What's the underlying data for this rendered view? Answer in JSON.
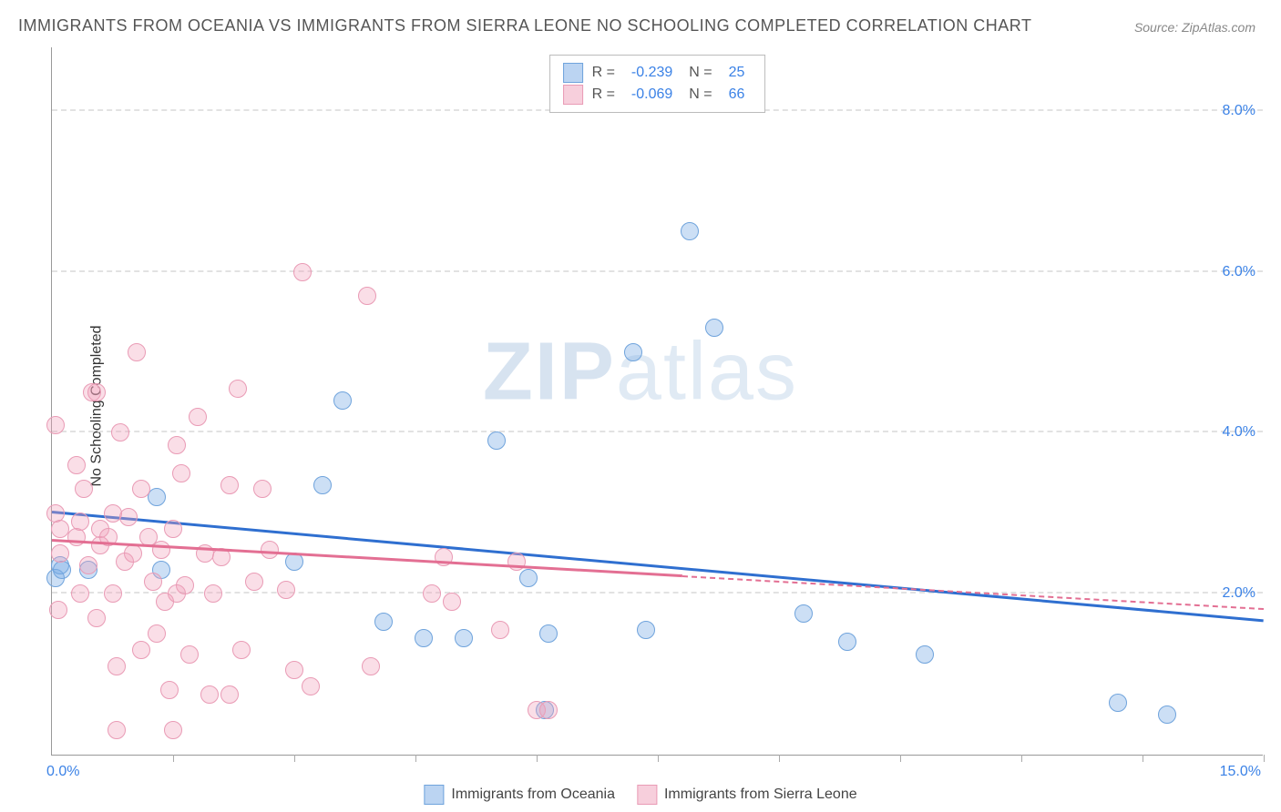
{
  "title": "IMMIGRANTS FROM OCEANIA VS IMMIGRANTS FROM SIERRA LEONE NO SCHOOLING COMPLETED CORRELATION CHART",
  "source": "Source: ZipAtlas.com",
  "ylabel": "No Schooling Completed",
  "watermark_zip": "ZIP",
  "watermark_atlas": "atlas",
  "chart": {
    "type": "scatter",
    "xlim": [
      0,
      15
    ],
    "ylim": [
      0,
      8.8
    ],
    "x_unit": "%",
    "y_unit": "%",
    "y_gridlines": [
      2,
      4,
      6,
      8
    ],
    "y_tick_labels": [
      "2.0%",
      "4.0%",
      "6.0%",
      "8.0%"
    ],
    "x_minor_ticks": [
      1.5,
      3.0,
      4.5,
      6.0,
      7.5,
      9.0,
      10.5,
      12.0,
      13.5,
      15.0
    ],
    "x_min_label": "0.0%",
    "x_max_label": "15.0%",
    "background_color": "#ffffff",
    "grid_color": "#e2e2e2",
    "axis_color": "#999999",
    "tick_label_color": "#3b82e6",
    "series": [
      {
        "name": "Immigrants from Oceania",
        "color": "#6fa3dc",
        "fill": "rgba(120,170,230,0.38)",
        "marker_size": 20,
        "R": "-0.239",
        "N": "25",
        "trend": {
          "x1": 0,
          "y1": 3.0,
          "x2": 15,
          "y2": 1.65,
          "color": "#2f6fd0",
          "width": 3,
          "dashed_after_x": null
        },
        "points": [
          [
            0.05,
            2.2
          ],
          [
            0.1,
            2.35
          ],
          [
            0.12,
            2.3
          ],
          [
            0.45,
            2.3
          ],
          [
            1.3,
            3.2
          ],
          [
            1.35,
            2.3
          ],
          [
            3.35,
            3.35
          ],
          [
            3.6,
            4.4
          ],
          [
            3.0,
            2.4
          ],
          [
            4.1,
            1.65
          ],
          [
            4.6,
            1.45
          ],
          [
            5.1,
            1.45
          ],
          [
            5.5,
            3.9
          ],
          [
            5.9,
            2.2
          ],
          [
            6.15,
            1.5
          ],
          [
            6.1,
            0.55
          ],
          [
            7.35,
            1.55
          ],
          [
            7.2,
            5.0
          ],
          [
            7.9,
            6.5
          ],
          [
            8.2,
            5.3
          ],
          [
            9.3,
            1.75
          ],
          [
            9.85,
            1.4
          ],
          [
            10.8,
            1.25
          ],
          [
            13.2,
            0.65
          ],
          [
            13.8,
            0.5
          ]
        ]
      },
      {
        "name": "Immigrants from Sierra Leone",
        "color": "#e99bb5",
        "fill": "rgba(240,160,185,0.35)",
        "marker_size": 20,
        "R": "-0.069",
        "N": "66",
        "trend": {
          "x1": 0,
          "y1": 2.65,
          "x2": 15,
          "y2": 1.8,
          "color": "#e36f93",
          "width": 3,
          "dashed_after_x": 7.8
        },
        "points": [
          [
            0.05,
            3.0
          ],
          [
            0.05,
            4.1
          ],
          [
            0.08,
            1.8
          ],
          [
            0.1,
            2.8
          ],
          [
            0.1,
            2.5
          ],
          [
            0.3,
            3.6
          ],
          [
            0.3,
            2.7
          ],
          [
            0.35,
            2.0
          ],
          [
            0.35,
            2.9
          ],
          [
            0.4,
            3.3
          ],
          [
            0.5,
            4.5
          ],
          [
            0.55,
            4.5
          ],
          [
            0.55,
            1.7
          ],
          [
            0.6,
            2.6
          ],
          [
            0.6,
            2.8
          ],
          [
            0.7,
            2.7
          ],
          [
            0.75,
            3.0
          ],
          [
            0.75,
            2.0
          ],
          [
            0.8,
            1.1
          ],
          [
            0.8,
            0.3
          ],
          [
            0.85,
            4.0
          ],
          [
            0.9,
            2.4
          ],
          [
            0.95,
            2.95
          ],
          [
            1.0,
            2.5
          ],
          [
            1.05,
            5.0
          ],
          [
            1.1,
            3.3
          ],
          [
            1.1,
            1.3
          ],
          [
            1.2,
            2.7
          ],
          [
            1.25,
            2.15
          ],
          [
            1.3,
            1.5
          ],
          [
            1.35,
            2.55
          ],
          [
            1.4,
            1.9
          ],
          [
            1.45,
            0.8
          ],
          [
            1.5,
            2.8
          ],
          [
            1.5,
            0.3
          ],
          [
            1.55,
            3.85
          ],
          [
            1.55,
            2.0
          ],
          [
            1.6,
            3.5
          ],
          [
            1.65,
            2.1
          ],
          [
            1.7,
            1.25
          ],
          [
            1.8,
            4.2
          ],
          [
            1.9,
            2.5
          ],
          [
            1.95,
            0.75
          ],
          [
            2.0,
            2.0
          ],
          [
            2.1,
            2.45
          ],
          [
            2.2,
            3.35
          ],
          [
            2.2,
            0.75
          ],
          [
            2.3,
            4.55
          ],
          [
            2.35,
            1.3
          ],
          [
            2.5,
            2.15
          ],
          [
            2.7,
            2.55
          ],
          [
            2.9,
            2.05
          ],
          [
            3.0,
            1.05
          ],
          [
            3.1,
            6.0
          ],
          [
            3.2,
            0.85
          ],
          [
            3.9,
            5.7
          ],
          [
            3.95,
            1.1
          ],
          [
            4.7,
            2.0
          ],
          [
            4.85,
            2.45
          ],
          [
            4.95,
            1.9
          ],
          [
            5.55,
            1.55
          ],
          [
            5.75,
            2.4
          ],
          [
            6.0,
            0.55
          ],
          [
            6.15,
            0.55
          ],
          [
            2.6,
            3.3
          ],
          [
            0.45,
            2.35
          ]
        ]
      }
    ],
    "legend_bottom": [
      {
        "swatch": "blue",
        "label": "Immigrants from Oceania"
      },
      {
        "swatch": "pink",
        "label": "Immigrants from Sierra Leone"
      }
    ]
  }
}
